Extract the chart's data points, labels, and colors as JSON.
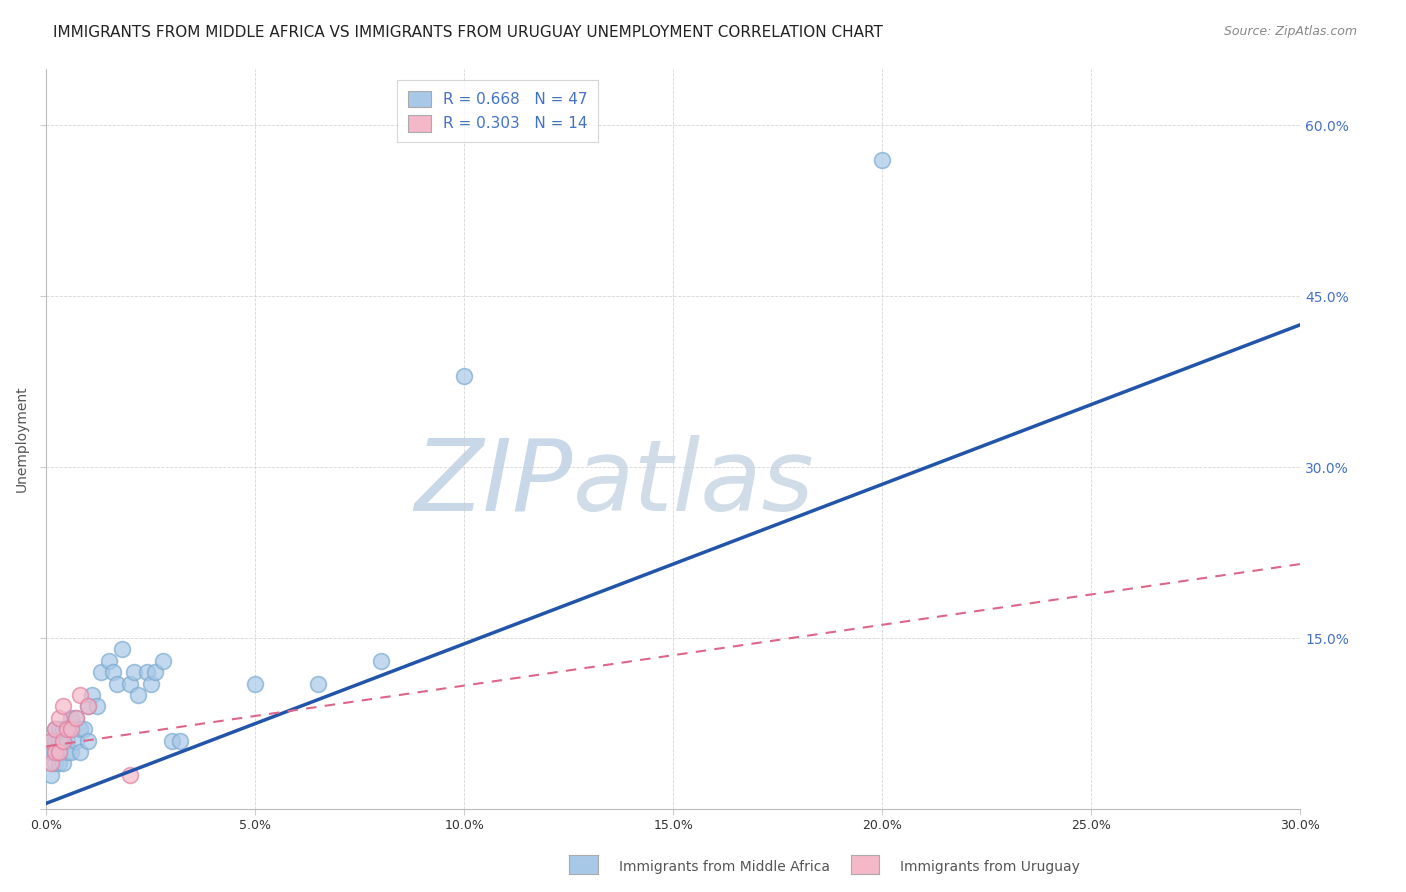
{
  "title": "IMMIGRANTS FROM MIDDLE AFRICA VS IMMIGRANTS FROM URUGUAY UNEMPLOYMENT CORRELATION CHART",
  "source": "Source: ZipAtlas.com",
  "xlabel_blue": "Immigrants from Middle Africa",
  "xlabel_pink": "Immigrants from Uruguay",
  "ylabel": "Unemployment",
  "xlim": [
    0.0,
    0.3
  ],
  "ylim": [
    0.0,
    0.65
  ],
  "yticks": [
    0.0,
    0.15,
    0.3,
    0.45,
    0.6
  ],
  "xticks": [
    0.0,
    0.05,
    0.1,
    0.15,
    0.2,
    0.25,
    0.3
  ],
  "xtick_labels": [
    "0.0%",
    "5.0%",
    "10.0%",
    "15.0%",
    "20.0%",
    "25.0%",
    "30.0%"
  ],
  "ytick_labels": [
    "",
    "15.0%",
    "30.0%",
    "45.0%",
    "60.0%"
  ],
  "R_blue": 0.668,
  "N_blue": 47,
  "R_pink": 0.303,
  "N_pink": 14,
  "blue_color": "#a8c8e8",
  "blue_edge_color": "#7aaace",
  "pink_color": "#f4b8c8",
  "pink_edge_color": "#e080a0",
  "line_blue_color": "#2255aa",
  "line_pink_color": "#dd6688",
  "watermark_zip": "ZIP",
  "watermark_atlas": "atlas",
  "watermark_color": "#d8e4f0",
  "blue_scatter_x": [
    0.001,
    0.001,
    0.001,
    0.002,
    0.002,
    0.002,
    0.002,
    0.003,
    0.003,
    0.003,
    0.003,
    0.004,
    0.004,
    0.004,
    0.005,
    0.005,
    0.005,
    0.006,
    0.006,
    0.007,
    0.007,
    0.008,
    0.008,
    0.009,
    0.01,
    0.01,
    0.011,
    0.012,
    0.013,
    0.015,
    0.016,
    0.017,
    0.018,
    0.02,
    0.021,
    0.022,
    0.024,
    0.025,
    0.026,
    0.028,
    0.03,
    0.032,
    0.05,
    0.065,
    0.08,
    0.1,
    0.2
  ],
  "blue_scatter_y": [
    0.03,
    0.05,
    0.06,
    0.04,
    0.05,
    0.06,
    0.07,
    0.05,
    0.06,
    0.04,
    0.07,
    0.04,
    0.06,
    0.07,
    0.05,
    0.06,
    0.07,
    0.05,
    0.08,
    0.06,
    0.08,
    0.05,
    0.07,
    0.07,
    0.06,
    0.09,
    0.1,
    0.09,
    0.12,
    0.13,
    0.12,
    0.11,
    0.14,
    0.11,
    0.12,
    0.1,
    0.12,
    0.11,
    0.12,
    0.13,
    0.06,
    0.06,
    0.11,
    0.11,
    0.13,
    0.38,
    0.57
  ],
  "pink_scatter_x": [
    0.001,
    0.001,
    0.002,
    0.002,
    0.003,
    0.003,
    0.004,
    0.004,
    0.005,
    0.006,
    0.007,
    0.008,
    0.01,
    0.02
  ],
  "pink_scatter_y": [
    0.04,
    0.06,
    0.05,
    0.07,
    0.05,
    0.08,
    0.06,
    0.09,
    0.07,
    0.07,
    0.08,
    0.1,
    0.09,
    0.03
  ],
  "blue_line_x": [
    0.0,
    0.3
  ],
  "blue_line_y": [
    0.005,
    0.425
  ],
  "pink_line_x": [
    0.0,
    0.3
  ],
  "pink_line_y": [
    0.055,
    0.215
  ],
  "background_color": "#ffffff",
  "grid_color": "#cccccc",
  "title_fontsize": 11,
  "axis_label_fontsize": 10,
  "tick_fontsize": 9,
  "legend_fontsize": 11
}
